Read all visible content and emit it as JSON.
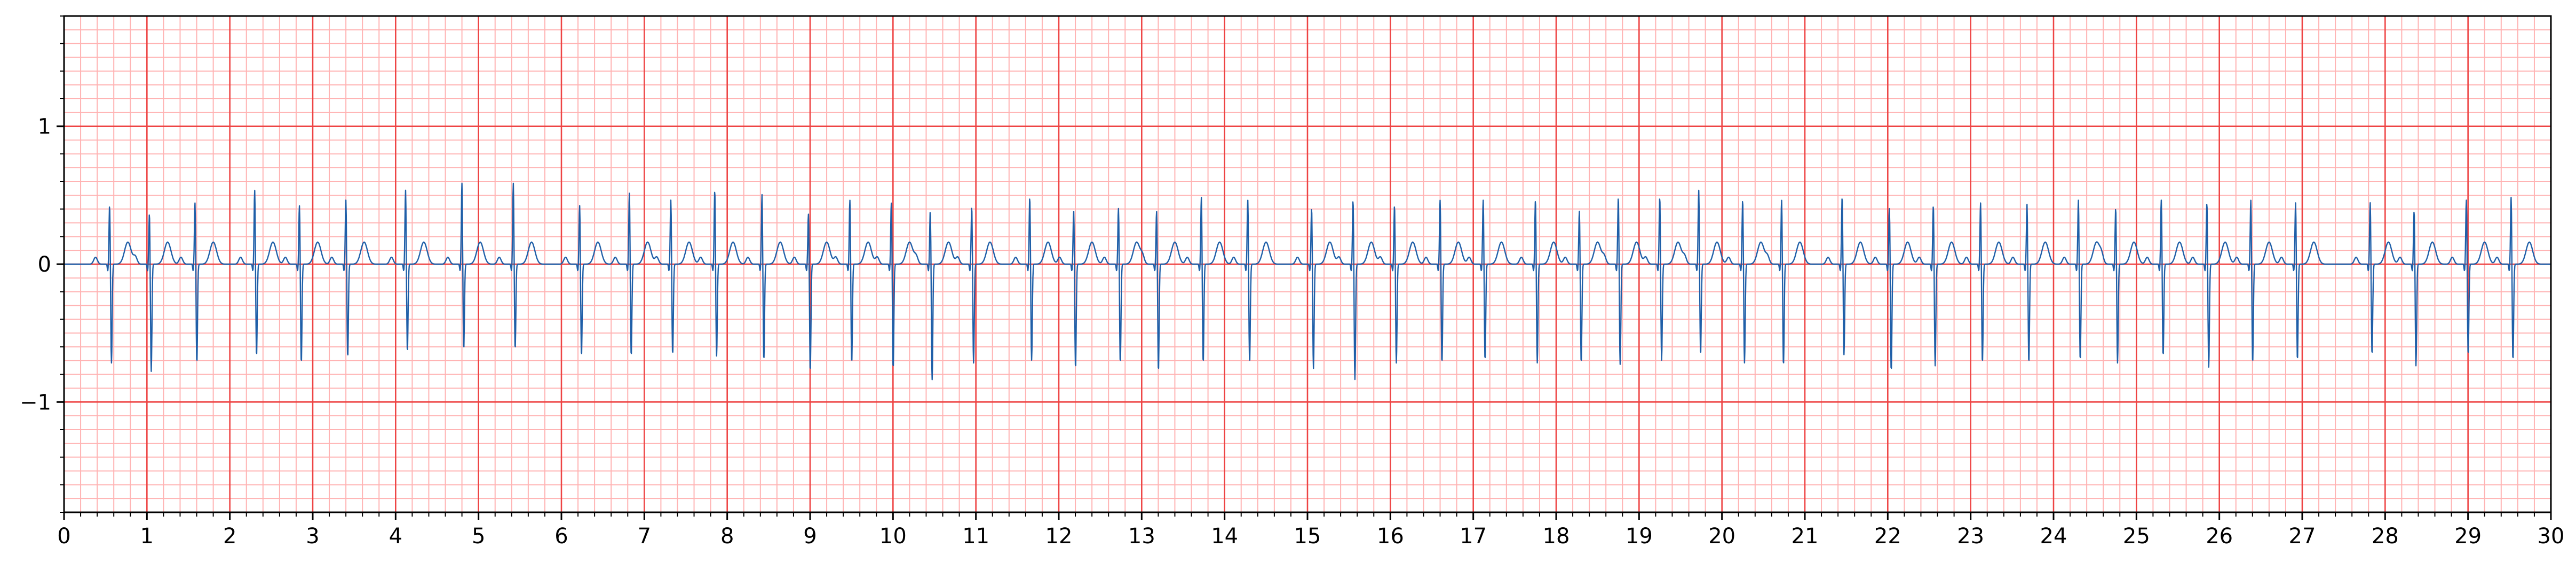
{
  "chart_data": {
    "type": "line",
    "title": "",
    "xlabel": "",
    "ylabel": "",
    "xlim": [
      0,
      30
    ],
    "ylim": [
      -1.8,
      1.8
    ],
    "x_ticks": [
      0,
      1,
      2,
      3,
      4,
      5,
      6,
      7,
      8,
      9,
      10,
      11,
      12,
      13,
      14,
      15,
      16,
      17,
      18,
      19,
      20,
      21,
      22,
      23,
      24,
      25,
      26,
      27,
      28,
      29,
      30
    ],
    "x_tick_labels": [
      "0",
      "1",
      "2",
      "3",
      "4",
      "5",
      "6",
      "7",
      "8",
      "9",
      "10",
      "11",
      "12",
      "13",
      "14",
      "15",
      "16",
      "17",
      "18",
      "19",
      "20",
      "21",
      "22",
      "23",
      "24",
      "25",
      "26",
      "27",
      "28",
      "29",
      "30"
    ],
    "y_ticks": [
      -1,
      0,
      1
    ],
    "y_tick_labels": [
      "−1",
      "0",
      "1"
    ],
    "grid": {
      "major_x": 1,
      "minor_x": 0.2,
      "major_y": 1,
      "minor_y": 0.1,
      "major_color": "#ee4444",
      "minor_color": "#ffb3b3"
    },
    "background_color": "#ffffff",
    "series": [
      {
        "color": "#1f5fa8",
        "sampling": "reconstructed from R-peak annotations; estimated",
        "r_peaks": [
          {
            "t": 0.55,
            "r": 0.44,
            "s": -0.72
          },
          {
            "t": 1.03,
            "r": 0.38,
            "s": -0.78
          },
          {
            "t": 1.58,
            "r": 0.46,
            "s": -0.72
          },
          {
            "t": 2.3,
            "r": 0.55,
            "s": -0.67
          },
          {
            "t": 2.84,
            "r": 0.44,
            "s": -0.72
          },
          {
            "t": 3.4,
            "r": 0.48,
            "s": -0.68
          },
          {
            "t": 4.12,
            "r": 0.55,
            "s": -0.64
          },
          {
            "t": 4.8,
            "r": 0.6,
            "s": -0.62
          },
          {
            "t": 5.42,
            "r": 0.6,
            "s": -0.62
          },
          {
            "t": 6.22,
            "r": 0.44,
            "s": -0.67
          },
          {
            "t": 6.82,
            "r": 0.53,
            "s": -0.67
          },
          {
            "t": 7.32,
            "r": 0.48,
            "s": -0.66
          },
          {
            "t": 7.85,
            "r": 0.55,
            "s": -0.67
          },
          {
            "t": 8.42,
            "r": 0.52,
            "s": -0.7
          },
          {
            "t": 8.98,
            "r": 0.38,
            "s": -0.78
          },
          {
            "t": 9.48,
            "r": 0.48,
            "s": -0.72
          },
          {
            "t": 9.98,
            "r": 0.46,
            "s": -0.76
          },
          {
            "t": 10.45,
            "r": 0.4,
            "s": -0.84
          },
          {
            "t": 10.95,
            "r": 0.43,
            "s": -0.72
          },
          {
            "t": 11.65,
            "r": 0.5,
            "s": -0.7
          },
          {
            "t": 12.18,
            "r": 0.4,
            "s": -0.76
          },
          {
            "t": 12.72,
            "r": 0.42,
            "s": -0.72
          },
          {
            "t": 13.18,
            "r": 0.4,
            "s": -0.78
          },
          {
            "t": 13.72,
            "r": 0.5,
            "s": -0.72
          },
          {
            "t": 14.28,
            "r": 0.48,
            "s": -0.72
          },
          {
            "t": 15.05,
            "r": 0.42,
            "s": -0.76
          },
          {
            "t": 15.55,
            "r": 0.48,
            "s": -0.84
          },
          {
            "t": 16.05,
            "r": 0.44,
            "s": -0.72
          },
          {
            "t": 16.6,
            "r": 0.48,
            "s": -0.72
          },
          {
            "t": 17.12,
            "r": 0.48,
            "s": -0.7
          },
          {
            "t": 17.75,
            "r": 0.48,
            "s": -0.72
          },
          {
            "t": 18.28,
            "r": 0.4,
            "s": -0.72
          },
          {
            "t": 18.75,
            "r": 0.5,
            "s": -0.73
          },
          {
            "t": 19.25,
            "r": 0.5,
            "s": -0.7
          },
          {
            "t": 19.72,
            "r": 0.55,
            "s": -0.66
          },
          {
            "t": 20.25,
            "r": 0.48,
            "s": -0.72
          },
          {
            "t": 20.72,
            "r": 0.48,
            "s": -0.74
          },
          {
            "t": 21.45,
            "r": 0.5,
            "s": -0.66
          },
          {
            "t": 22.02,
            "r": 0.42,
            "s": -0.78
          },
          {
            "t": 22.55,
            "r": 0.44,
            "s": -0.74
          },
          {
            "t": 23.12,
            "r": 0.46,
            "s": -0.72
          },
          {
            "t": 23.68,
            "r": 0.45,
            "s": -0.72
          },
          {
            "t": 24.3,
            "r": 0.48,
            "s": -0.7
          },
          {
            "t": 24.75,
            "r": 0.42,
            "s": -0.72
          },
          {
            "t": 25.3,
            "r": 0.48,
            "s": -0.67
          },
          {
            "t": 25.85,
            "r": 0.46,
            "s": -0.75
          },
          {
            "t": 26.38,
            "r": 0.48,
            "s": -0.72
          },
          {
            "t": 26.92,
            "r": 0.46,
            "s": -0.7
          },
          {
            "t": 27.82,
            "r": 0.46,
            "s": -0.66
          },
          {
            "t": 28.35,
            "r": 0.4,
            "s": -0.74
          },
          {
            "t": 28.98,
            "r": 0.48,
            "s": -0.66
          },
          {
            "t": 29.52,
            "r": 0.5,
            "s": -0.7
          }
        ]
      }
    ]
  }
}
